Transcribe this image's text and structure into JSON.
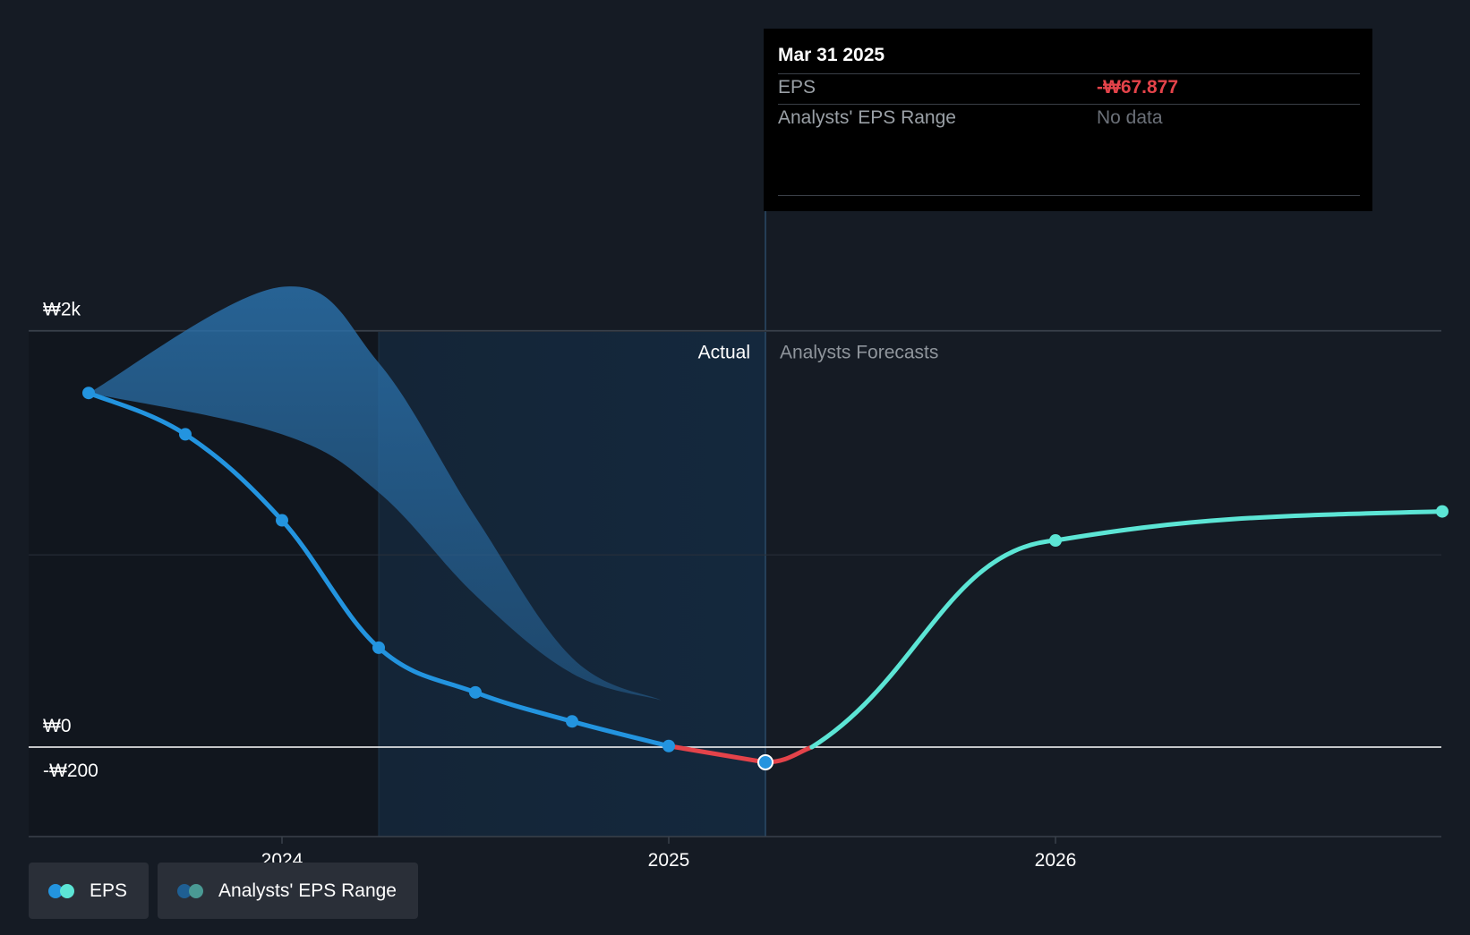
{
  "tooltip": {
    "date": "Mar 31 2025",
    "rows": [
      {
        "label": "EPS",
        "value": "-₩67.877"
      },
      {
        "label": "Analysts' EPS Range",
        "value": "No data"
      }
    ]
  },
  "section_labels": {
    "actual": "Actual",
    "forecast": "Analysts Forecasts"
  },
  "legend": [
    {
      "label": "EPS",
      "colors": [
        "#2394df",
        "#5ce5d5"
      ]
    },
    {
      "label": "Analysts' EPS Range",
      "colors": [
        "#1f5f93",
        "#4a9a94"
      ]
    }
  ],
  "colors": {
    "background": "#151b24",
    "eps_actual": "#2394df",
    "eps_negative": "#e4434a",
    "eps_forecast": "#5ce5d5",
    "range_fill": "#2a6fa8",
    "highlight_band": "#14283d",
    "tooltip_negative": "#e4434a"
  },
  "chart_data": {
    "type": "line",
    "title": "",
    "xlabel": "",
    "ylabel": "",
    "y_ticks": [
      {
        "value": 2000,
        "label": "₩2k"
      },
      {
        "value": 0,
        "label": "₩0"
      },
      {
        "value": -200,
        "label": "-₩200"
      }
    ],
    "x_ticks": [
      {
        "value": 2024.0,
        "label": "2024"
      },
      {
        "value": 2025.0,
        "label": "2025"
      },
      {
        "value": 2026.0,
        "label": "2026"
      }
    ],
    "xlim": [
      2023.4,
      2027.0
    ],
    "ylim": [
      -200,
      2200
    ],
    "highlight_band": [
      2024.25,
      2025.25
    ],
    "divider_x": 2025.25,
    "series": [
      {
        "name": "EPS",
        "kind": "actual",
        "points": [
          {
            "x": 2023.5,
            "y": 1585
          },
          {
            "x": 2023.75,
            "y": 1400
          },
          {
            "x": 2024.0,
            "y": 1015
          },
          {
            "x": 2024.25,
            "y": 445
          },
          {
            "x": 2024.5,
            "y": 245
          },
          {
            "x": 2024.75,
            "y": 115
          },
          {
            "x": 2025.0,
            "y": 5
          },
          {
            "x": 2025.25,
            "y": -67.877
          }
        ]
      },
      {
        "name": "EPS",
        "kind": "forecast",
        "points": [
          {
            "x": 2025.25,
            "y": -67.877
          },
          {
            "x": 2026.0,
            "y": 925
          },
          {
            "x": 2027.0,
            "y": 1055
          }
        ]
      }
    ],
    "range": {
      "name": "Analysts' EPS Range",
      "x": [
        2023.5,
        2024.0,
        2024.25,
        2024.5,
        2024.75,
        2024.98
      ],
      "high": [
        1585,
        2060,
        1720,
        1030,
        400,
        210
      ],
      "low": [
        1585,
        1400,
        1140,
        680,
        330,
        210
      ]
    }
  }
}
